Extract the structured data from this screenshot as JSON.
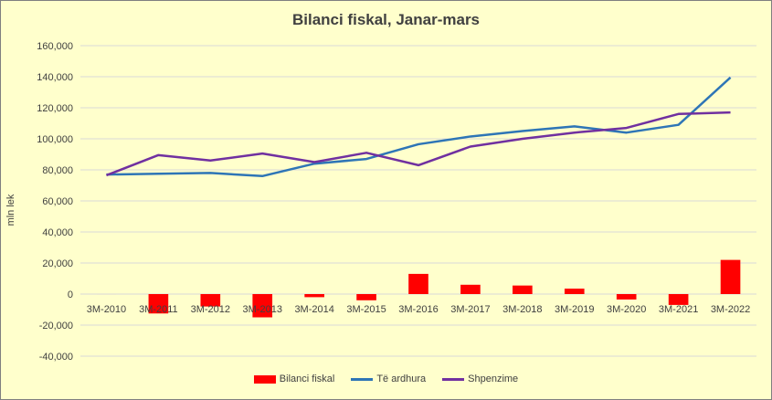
{
  "chart_data": {
    "type": "bar+line",
    "title": "Bilanci fiskal, Janar-mars",
    "ylabel": "mln lek",
    "xlabel": "",
    "ylim": [
      -40000,
      160000
    ],
    "yticks": [
      -40000,
      -20000,
      0,
      20000,
      40000,
      60000,
      80000,
      100000,
      120000,
      140000,
      160000
    ],
    "ytick_labels": [
      "-40,000",
      "-20,000",
      "0",
      "20,000",
      "40,000",
      "60,000",
      "80,000",
      "100,000",
      "120,000",
      "140,000",
      "160,000"
    ],
    "categories": [
      "3M-2010",
      "3M-2011",
      "3M-2012",
      "3M-2013",
      "3M-2014",
      "3M-2015",
      "3M-2016",
      "3M-2017",
      "3M-2018",
      "3M-2019",
      "3M-2020",
      "3M-2021",
      "3M-2022"
    ],
    "grid": true,
    "legend_position": "bottom",
    "series": [
      {
        "name": "Bilanci fiskal",
        "kind": "bar",
        "color": "#ff0000",
        "values": [
          0,
          -12500,
          -8000,
          -15000,
          -2000,
          -4000,
          13000,
          6000,
          5500,
          3500,
          -3500,
          -7000,
          22000
        ]
      },
      {
        "name": "Të ardhura",
        "kind": "line",
        "color": "#2e75b6",
        "values": [
          77000,
          77500,
          78000,
          76000,
          84000,
          87000,
          96500,
          101500,
          105000,
          108000,
          104000,
          109000,
          139500
        ]
      },
      {
        "name": "Shpenzime",
        "kind": "line",
        "color": "#7030a0",
        "values": [
          76500,
          89500,
          86000,
          90500,
          85000,
          91000,
          83000,
          95000,
          100000,
          104000,
          107000,
          116000,
          117000
        ]
      }
    ]
  }
}
